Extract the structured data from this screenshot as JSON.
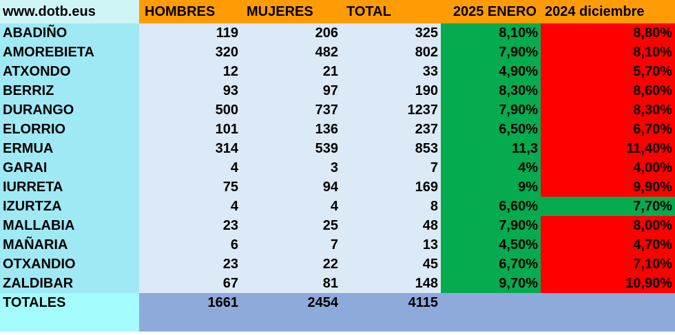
{
  "header": {
    "site": "www.dotb.eus",
    "hombres": "HOMBRES",
    "mujeres": "MUJERES",
    "total": "TOTAL",
    "enero": "2025 ENERO",
    "diciembre": "2024 diciembre"
  },
  "colors": {
    "header_orange": "#ff9c05",
    "name_column_blue": "#9fe9f5",
    "data_light_blue": "#dce9f6",
    "better_green": "#05ab4e",
    "worse_red": "#ff0000",
    "totals_blue": "#8eaadb"
  },
  "rows": [
    {
      "name": "ABADIÑO",
      "hombres": "119",
      "mujeres": "206",
      "total": "325",
      "enero": "8,10%",
      "diciembre": "8,80%",
      "diciembre_color": "red"
    },
    {
      "name": "AMOREBIETA",
      "hombres": "320",
      "mujeres": "482",
      "total": "802",
      "enero": "7,90%",
      "diciembre": "8,10%",
      "diciembre_color": "red"
    },
    {
      "name": "ATXONDO",
      "hombres": "12",
      "mujeres": "21",
      "total": "33",
      "enero": "4,90%",
      "diciembre": "5,70%",
      "diciembre_color": "red"
    },
    {
      "name": "BERRIZ",
      "hombres": "93",
      "mujeres": "97",
      "total": "190",
      "enero": "8,30%",
      "diciembre": "8,60%",
      "diciembre_color": "red"
    },
    {
      "name": "DURANGO",
      "hombres": "500",
      "mujeres": "737",
      "total": "1237",
      "enero": "7,90%",
      "diciembre": "8,30%",
      "diciembre_color": "red"
    },
    {
      "name": "ELORRIO",
      "hombres": "101",
      "mujeres": "136",
      "total": "237",
      "enero": "6,50%",
      "diciembre": "6,70%",
      "diciembre_color": "red"
    },
    {
      "name": "ERMUA",
      "hombres": "314",
      "mujeres": "539",
      "total": "853",
      "enero": "11,3",
      "diciembre": "11,40%",
      "diciembre_color": "red"
    },
    {
      "name": "GARAI",
      "hombres": "4",
      "mujeres": "3",
      "total": "7",
      "enero": "4%",
      "diciembre": "4,00%",
      "diciembre_color": "red"
    },
    {
      "name": "IURRETA",
      "hombres": "75",
      "mujeres": "94",
      "total": "169",
      "enero": "9%",
      "diciembre": "9,90%",
      "diciembre_color": "red"
    },
    {
      "name": "IZURTZA",
      "hombres": "4",
      "mujeres": "4",
      "total": "8",
      "enero": "6,60%",
      "diciembre": "7,70%",
      "diciembre_color": "green"
    },
    {
      "name": "MALLABIA",
      "hombres": "23",
      "mujeres": "25",
      "total": "48",
      "enero": "7,90%",
      "diciembre": "8,00%",
      "diciembre_color": "red"
    },
    {
      "name": "MAÑARIA",
      "hombres": "6",
      "mujeres": "7",
      "total": "13",
      "enero": "4,50%",
      "diciembre": "4,70%",
      "diciembre_color": "red"
    },
    {
      "name": "OTXANDIO",
      "hombres": "23",
      "mujeres": "22",
      "total": "45",
      "enero": "6,70%",
      "diciembre": "7,10%",
      "diciembre_color": "red"
    },
    {
      "name": "ZALDIBAR",
      "hombres": "67",
      "mujeres": "81",
      "total": "148",
      "enero": "9,70%",
      "diciembre": "10,90%",
      "diciembre_color": "red"
    }
  ],
  "totals": {
    "label": "TOTALES",
    "hombres": "1661",
    "mujeres": "2454",
    "total": "4115"
  }
}
